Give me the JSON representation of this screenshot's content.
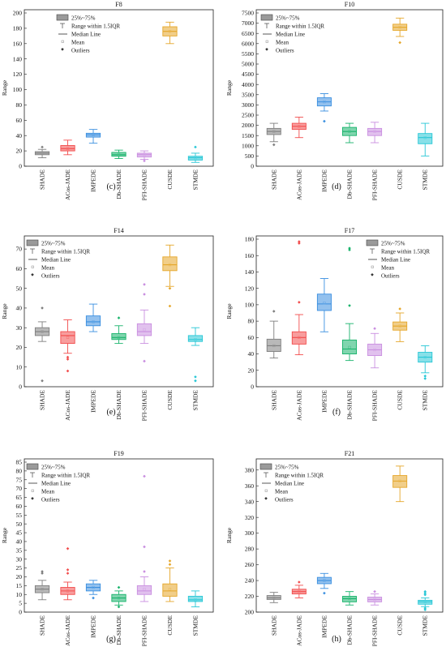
{
  "legend_labels": {
    "box": "25%~75%",
    "whisker": "Range within 1.5IQR",
    "median": "Median Line",
    "mean": "Mean",
    "outliers": "Outliers"
  },
  "colors": {
    "SHADE": "#7f7f7f",
    "ACos-JADE": "#f24c4c",
    "IMPEDE": "#3a8fe0",
    "Db-SHADE": "#18b36b",
    "PFI-SHADE": "#c98ee0",
    "CUSDE": "#e5a629",
    "STMDE": "#27c7d6"
  },
  "chart_data": [
    {
      "type": "box",
      "title": "F8",
      "caption": "(c)",
      "ylabel": "Range",
      "ylim": [
        0,
        200
      ],
      "yticks": [
        0,
        20,
        40,
        60,
        80,
        100,
        120,
        140,
        160,
        180,
        200
      ],
      "categories": [
        "SHADE",
        "ACos-JADE",
        "IMPEDE",
        "Db-SHADE",
        "PFI-SHADE",
        "CUSDE",
        "STMDE"
      ],
      "boxes": [
        {
          "q1": 15,
          "median": 17,
          "q3": 19,
          "wlo": 11,
          "whi": 22,
          "mean": 17,
          "outliers": [
            25
          ]
        },
        {
          "q1": 20,
          "median": 23,
          "q3": 27,
          "wlo": 15,
          "whi": 34,
          "mean": 23,
          "outliers": []
        },
        {
          "q1": 38,
          "median": 41,
          "q3": 43,
          "wlo": 30,
          "whi": 48,
          "mean": 41,
          "outliers": []
        },
        {
          "q1": 13,
          "median": 15,
          "q3": 18,
          "wlo": 10,
          "whi": 21,
          "mean": 15,
          "outliers": []
        },
        {
          "q1": 12,
          "median": 15,
          "q3": 17,
          "wlo": 9,
          "whi": 20,
          "mean": 15,
          "outliers": [
            7
          ]
        },
        {
          "q1": 170,
          "median": 176,
          "q3": 182,
          "wlo": 160,
          "whi": 188,
          "mean": 176,
          "outliers": []
        },
        {
          "q1": 8,
          "median": 11,
          "q3": 13,
          "wlo": 5,
          "whi": 17,
          "mean": 11,
          "outliers": [
            25
          ]
        }
      ]
    },
    {
      "type": "box",
      "title": "F10",
      "caption": "(d)",
      "ylabel": "Range",
      "ylim": [
        0,
        7500
      ],
      "yticks": [
        0,
        500,
        1000,
        1500,
        2000,
        2500,
        3000,
        3500,
        4000,
        4500,
        5000,
        5500,
        6000,
        6500,
        7000,
        7500
      ],
      "categories": [
        "SHADE",
        "ACos-JADE",
        "IMPEDE",
        "Db-SHADE",
        "PFI-SHADE",
        "CUSDE",
        "STMDE"
      ],
      "boxes": [
        {
          "q1": 1550,
          "median": 1700,
          "q3": 1850,
          "wlo": 1200,
          "whi": 2100,
          "mean": 1700,
          "outliers": [
            1050
          ]
        },
        {
          "q1": 1800,
          "median": 1950,
          "q3": 2100,
          "wlo": 1400,
          "whi": 2400,
          "mean": 1950,
          "outliers": []
        },
        {
          "q1": 2950,
          "median": 3150,
          "q3": 3350,
          "wlo": 2700,
          "whi": 3550,
          "mean": 3150,
          "outliers": [
            2200
          ]
        },
        {
          "q1": 1500,
          "median": 1700,
          "q3": 1900,
          "wlo": 1150,
          "whi": 2100,
          "mean": 1700,
          "outliers": []
        },
        {
          "q1": 1500,
          "median": 1700,
          "q3": 1850,
          "wlo": 1150,
          "whi": 2150,
          "mean": 1700,
          "outliers": []
        },
        {
          "q1": 6650,
          "median": 6800,
          "q3": 6950,
          "wlo": 6350,
          "whi": 7250,
          "mean": 6800,
          "outliers": [
            6050
          ]
        },
        {
          "q1": 1100,
          "median": 1400,
          "q3": 1600,
          "wlo": 500,
          "whi": 2100,
          "mean": 1400,
          "outliers": []
        }
      ]
    },
    {
      "type": "box",
      "title": "F14",
      "caption": "(e)",
      "ylabel": "Range",
      "ylim": [
        0,
        75
      ],
      "yticks": [
        0,
        10,
        20,
        30,
        40,
        50,
        60,
        70
      ],
      "categories": [
        "SHADE",
        "ACos-JADE",
        "IMPEDE",
        "Db-SHADE",
        "PFI-SHADE",
        "CUSDE",
        "STMDE"
      ],
      "boxes": [
        {
          "q1": 26,
          "median": 28,
          "q3": 30,
          "wlo": 23,
          "whi": 33,
          "mean": 28,
          "outliers": [
            40,
            3
          ]
        },
        {
          "q1": 22,
          "median": 26,
          "q3": 28,
          "wlo": 17,
          "whi": 34,
          "mean": 25,
          "outliers": [
            15,
            14,
            8
          ]
        },
        {
          "q1": 31,
          "median": 33,
          "q3": 36,
          "wlo": 28,
          "whi": 42,
          "mean": 33,
          "outliers": []
        },
        {
          "q1": 24,
          "median": 25,
          "q3": 27,
          "wlo": 22,
          "whi": 31,
          "mean": 25,
          "outliers": [
            35
          ]
        },
        {
          "q1": 26,
          "median": 28,
          "q3": 32,
          "wlo": 22,
          "whi": 39,
          "mean": 29,
          "outliers": [
            47,
            52,
            13
          ]
        },
        {
          "q1": 59,
          "median": 62,
          "q3": 66,
          "wlo": 51,
          "whi": 72,
          "mean": 62,
          "outliers": [
            50,
            41
          ]
        },
        {
          "q1": 23,
          "median": 24,
          "q3": 26,
          "wlo": 21,
          "whi": 30,
          "mean": 24,
          "outliers": [
            5,
            3
          ]
        }
      ]
    },
    {
      "type": "box",
      "title": "F17",
      "caption": "(f)",
      "ylabel": "Range",
      "ylim": [
        0,
        180
      ],
      "yticks": [
        0,
        20,
        40,
        60,
        80,
        100,
        120,
        140,
        160,
        180
      ],
      "categories": [
        "SHADE",
        "ACos-JADE",
        "IMPEDE",
        "Db-SHADE",
        "PFI-SHADE",
        "CUSDE",
        "STMDE"
      ],
      "boxes": [
        {
          "q1": 43,
          "median": 50,
          "q3": 58,
          "wlo": 35,
          "whi": 80,
          "mean": 50,
          "outliers": [
            92
          ]
        },
        {
          "q1": 52,
          "median": 60,
          "q3": 67,
          "wlo": 39,
          "whi": 88,
          "mean": 60,
          "outliers": [
            103,
            175,
            177
          ]
        },
        {
          "q1": 93,
          "median": 101,
          "q3": 113,
          "wlo": 67,
          "whi": 132,
          "mean": 102,
          "outliers": []
        },
        {
          "q1": 40,
          "median": 46,
          "q3": 57,
          "wlo": 32,
          "whi": 77,
          "mean": 48,
          "outliers": [
            99,
            167,
            169
          ]
        },
        {
          "q1": 38,
          "median": 45,
          "q3": 52,
          "wlo": 23,
          "whi": 65,
          "mean": 45,
          "outliers": [
            71
          ]
        },
        {
          "q1": 69,
          "median": 74,
          "q3": 79,
          "wlo": 55,
          "whi": 90,
          "mean": 74,
          "outliers": [
            95
          ]
        },
        {
          "q1": 30,
          "median": 36,
          "q3": 42,
          "wlo": 17,
          "whi": 50,
          "mean": 36,
          "outliers": [
            13,
            10
          ]
        }
      ]
    },
    {
      "type": "box",
      "title": "F19",
      "caption": "(g)",
      "ylabel": "Range",
      "ylim": [
        0,
        85
      ],
      "yticks": [
        0,
        5,
        10,
        15,
        20,
        25,
        30,
        35,
        40,
        45,
        50,
        55,
        60,
        65,
        70,
        75,
        80,
        85
      ],
      "categories": [
        "SHADE",
        "ACos-JADE",
        "IMPEDE",
        "Db-SHADE",
        "PFI-SHADE",
        "CUSDE",
        "STMDE"
      ],
      "boxes": [
        {
          "q1": 11,
          "median": 13,
          "q3": 15,
          "wlo": 7,
          "whi": 18,
          "mean": 13,
          "outliers": [
            22,
            23
          ]
        },
        {
          "q1": 10,
          "median": 12,
          "q3": 14,
          "wlo": 7,
          "whi": 17,
          "mean": 12,
          "outliers": [
            22,
            24,
            36
          ]
        },
        {
          "q1": 12,
          "median": 14,
          "q3": 16,
          "wlo": 10,
          "whi": 18,
          "mean": 14,
          "outliers": [
            8
          ]
        },
        {
          "q1": 6,
          "median": 8,
          "q3": 10,
          "wlo": 4,
          "whi": 12,
          "mean": 8,
          "outliers": [
            14,
            3
          ]
        },
        {
          "q1": 10,
          "median": 12,
          "q3": 15,
          "wlo": 6,
          "whi": 20,
          "mean": 13,
          "outliers": [
            23,
            37,
            77
          ]
        },
        {
          "q1": 9,
          "median": 12,
          "q3": 16,
          "wlo": 6,
          "whi": 25,
          "mean": 13,
          "outliers": [
            27,
            29
          ]
        },
        {
          "q1": 6,
          "median": 7,
          "q3": 9,
          "wlo": 3,
          "whi": 12,
          "mean": 7,
          "outliers": []
        }
      ]
    },
    {
      "type": "box",
      "title": "F21",
      "caption": "(h)",
      "ylabel": "Range",
      "ylim": [
        200,
        390
      ],
      "yticks": [
        200,
        220,
        240,
        260,
        280,
        300,
        320,
        340,
        360,
        380
      ],
      "categories": [
        "SHADE",
        "ACos-JADE",
        "IMPEDE",
        "Db-SHADE",
        "PFI-SHADE",
        "CUSDE",
        "STMDE"
      ],
      "boxes": [
        {
          "q1": 216,
          "median": 218,
          "q3": 221,
          "wlo": 212,
          "whi": 225,
          "mean": 218,
          "outliers": []
        },
        {
          "q1": 223,
          "median": 226,
          "q3": 229,
          "wlo": 218,
          "whi": 234,
          "mean": 226,
          "outliers": [
            238
          ]
        },
        {
          "q1": 236,
          "median": 240,
          "q3": 244,
          "wlo": 230,
          "whi": 249,
          "mean": 240,
          "outliers": [
            224
          ]
        },
        {
          "q1": 213,
          "median": 217,
          "q3": 220,
          "wlo": 209,
          "whi": 226,
          "mean": 217,
          "outliers": []
        },
        {
          "q1": 213,
          "median": 216,
          "q3": 219,
          "wlo": 209,
          "whi": 223,
          "mean": 216,
          "outliers": [
            226
          ]
        },
        {
          "q1": 358,
          "median": 366,
          "q3": 373,
          "wlo": 340,
          "whi": 385,
          "mean": 366,
          "outliers": []
        },
        {
          "q1": 210,
          "median": 213,
          "q3": 215,
          "wlo": 207,
          "whi": 218,
          "mean": 213,
          "outliers": [
            222,
            224,
            226,
            205,
            203
          ]
        }
      ]
    }
  ]
}
